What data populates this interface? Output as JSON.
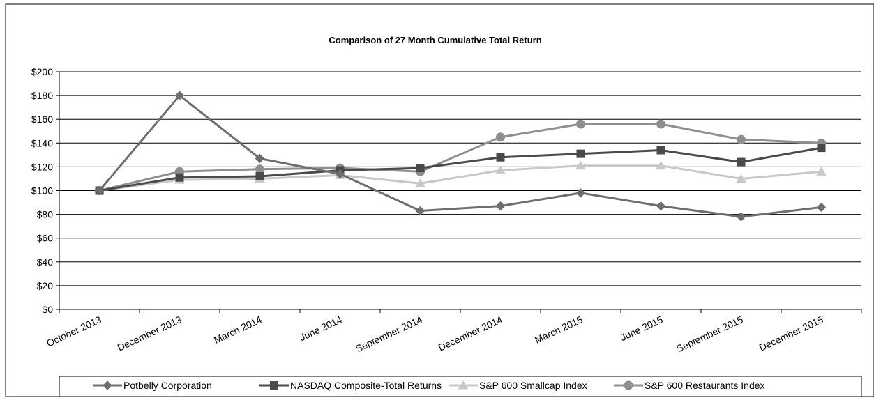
{
  "chart_data": {
    "type": "line",
    "title": "Comparison of 27 Month Cumulative Total Return",
    "xlabel": "",
    "ylabel": "",
    "ylim": [
      0,
      200
    ],
    "y_ticks": [
      0,
      20,
      40,
      60,
      80,
      100,
      120,
      140,
      160,
      180,
      200
    ],
    "y_tick_labels": [
      "$0",
      "$20",
      "$40",
      "$60",
      "$80",
      "$100",
      "$120",
      "$140",
      "$160",
      "$180",
      "$200"
    ],
    "grid": true,
    "legend_position": "bottom",
    "categories": [
      "October 2013",
      "December 2013",
      "March 2014",
      "June 2014",
      "September 2014",
      "December 2014",
      "March 2015",
      "June 2015",
      "September 2015",
      "December 2015"
    ],
    "series": [
      {
        "name": "Potbelly Corporation",
        "color": "#6e6e6e",
        "marker": "diamond",
        "values": [
          100,
          180,
          127,
          114,
          83,
          87,
          98,
          87,
          78,
          86
        ]
      },
      {
        "name": "NASDAQ Composite-Total Returns",
        "color": "#4a4a4a",
        "marker": "square",
        "values": [
          100,
          111,
          112,
          117,
          119,
          128,
          131,
          134,
          124,
          136
        ]
      },
      {
        "name": "S&P 600 Smallcap Index",
        "color": "#c8c8c8",
        "marker": "triangle",
        "values": [
          100,
          109,
          110,
          113,
          106,
          117,
          121,
          121,
          110,
          116
        ]
      },
      {
        "name": "S&P 600 Restaurants Index",
        "color": "#8f8f8f",
        "marker": "circle",
        "values": [
          100,
          116,
          118,
          119,
          116,
          145,
          156,
          156,
          143,
          140
        ]
      }
    ]
  }
}
